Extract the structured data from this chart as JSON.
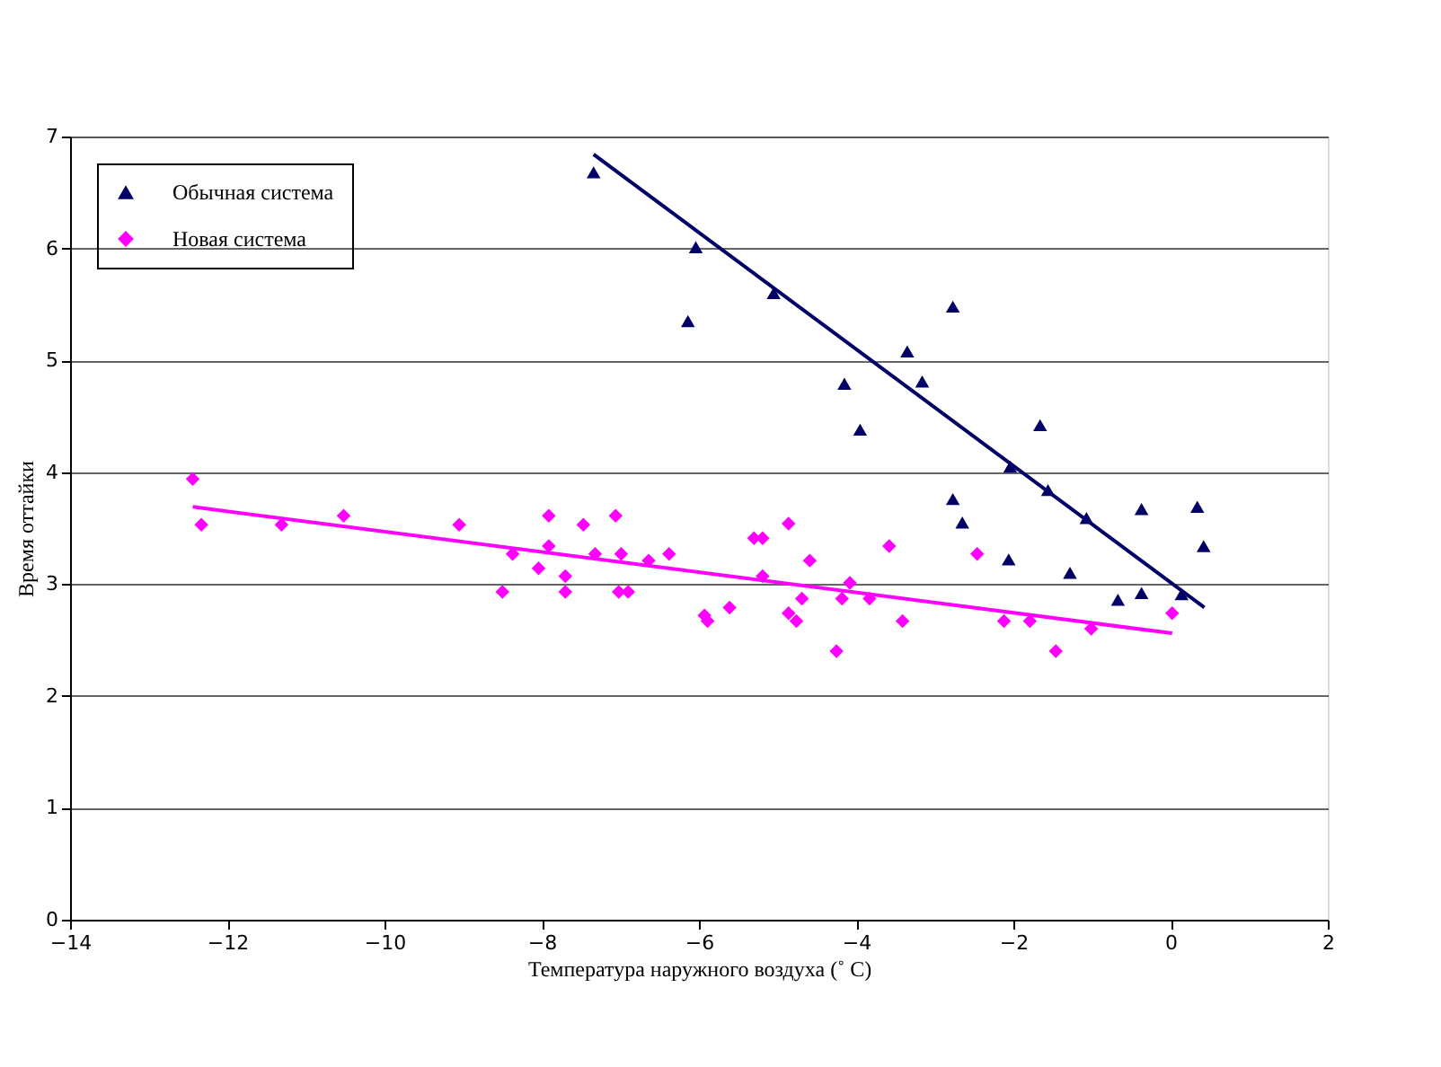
{
  "chart_data": {
    "type": "scatter",
    "xlabel": "Температура наружного воздуха (˚ C)",
    "ylabel": "Время оттайки",
    "xlim": [
      -14,
      2
    ],
    "xticks": [
      -14,
      -12,
      -10,
      -8,
      -6,
      -4,
      -2,
      0,
      2
    ],
    "ylim": [
      0,
      7
    ],
    "yticks": [
      0,
      1,
      2,
      3,
      4,
      5,
      6,
      7
    ],
    "grid": "y",
    "legend": "top left",
    "series": [
      {
        "name": "Обычная система",
        "color": "#000066",
        "marker": "triangle",
        "x": [
          -7.34,
          -6.04,
          -6.14,
          -5.05,
          -2.77,
          -3.35,
          -3.16,
          -4.15,
          -3.95,
          -1.66,
          -2.04,
          -1.56,
          -1.07,
          -2.77,
          -2.65,
          -0.37,
          0.34,
          0.42,
          -2.06,
          -1.28,
          -0.67,
          -0.37,
          0.14
        ],
        "values": [
          6.68,
          6.01,
          5.35,
          5.6,
          5.48,
          5.08,
          4.81,
          4.79,
          4.38,
          4.42,
          4.05,
          3.84,
          3.59,
          3.76,
          3.55,
          3.67,
          3.69,
          3.34,
          3.22,
          3.1,
          2.86,
          2.92,
          2.91
        ]
      },
      {
        "name": "Новая система",
        "color": "#ff00ff",
        "marker": "diamond",
        "x": [
          -12.44,
          -12.33,
          -11.31,
          -10.52,
          -9.05,
          -8.37,
          -8.5,
          -8.04,
          -7.91,
          -7.91,
          -7.7,
          -7.7,
          -7.47,
          -7.32,
          -7.06,
          -6.99,
          -7.02,
          -6.9,
          -6.64,
          -6.38,
          -5.93,
          -5.89,
          -5.61,
          -5.3,
          -5.19,
          -5.19,
          -4.86,
          -4.59,
          -4.86,
          -4.76,
          -4.69,
          -4.25,
          -4.18,
          -4.08,
          -3.83,
          -3.58,
          -3.41,
          -2.46,
          -2.12,
          -1.79,
          -1.46,
          -1.01,
          0.02
        ],
        "values": [
          3.94,
          3.53,
          3.53,
          3.61,
          3.53,
          3.27,
          2.93,
          3.14,
          3.61,
          3.34,
          3.07,
          2.93,
          3.53,
          3.27,
          3.61,
          3.27,
          2.93,
          2.93,
          3.21,
          3.27,
          2.72,
          2.67,
          2.79,
          3.41,
          3.41,
          3.07,
          3.54,
          3.21,
          2.74,
          2.67,
          2.87,
          2.4,
          2.87,
          3.01,
          2.87,
          3.34,
          2.67,
          3.27,
          2.67,
          2.67,
          2.4,
          2.6,
          2.74
        ]
      },
      {
        "type": "line",
        "color": "#000066",
        "x": [
          -7.34,
          0.43
        ],
        "values": [
          6.84,
          2.79
        ]
      },
      {
        "type": "line",
        "color": "#ff00ff",
        "x": [
          -12.44,
          0.02
        ],
        "values": [
          3.69,
          2.56
        ]
      }
    ]
  }
}
